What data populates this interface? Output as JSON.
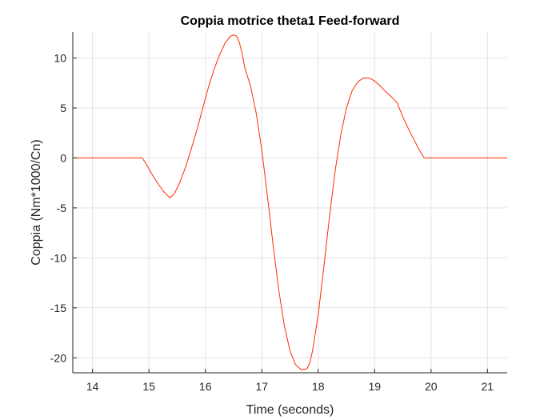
{
  "chart_data": {
    "type": "line",
    "title": "Coppia motrice theta1 Feed-forward",
    "xlabel": "Time (seconds)",
    "ylabel": "Coppia (Nm*1000/Cn)",
    "xlim": [
      13.65,
      21.35
    ],
    "ylim": [
      -21.5,
      12.6
    ],
    "xticks": [
      "14",
      "15",
      "16",
      "17",
      "18",
      "19",
      "20",
      "21"
    ],
    "yticks": [
      "10",
      "5",
      "0",
      "-5",
      "-10",
      "-15",
      "-20"
    ],
    "grid": true,
    "series": [
      {
        "color": "#ff2a00",
        "x": [
          13.65,
          14.88,
          14.95,
          15.05,
          15.15,
          15.25,
          15.37,
          15.45,
          15.55,
          15.65,
          15.75,
          15.85,
          15.95,
          16.05,
          16.15,
          16.25,
          16.35,
          16.45,
          16.5,
          16.55,
          16.6,
          16.65,
          16.7,
          16.8,
          16.9,
          17.0,
          17.1,
          17.2,
          17.3,
          17.4,
          17.5,
          17.6,
          17.7,
          17.8,
          17.85,
          17.9,
          18.0,
          18.1,
          18.2,
          18.3,
          18.4,
          18.5,
          18.6,
          18.7,
          18.8,
          18.9,
          19.0,
          19.1,
          19.2,
          19.3,
          19.4,
          19.5,
          19.6,
          19.7,
          19.8,
          19.88,
          21.35
        ],
        "y": [
          0,
          0,
          -0.6,
          -1.6,
          -2.5,
          -3.3,
          -4.0,
          -3.6,
          -2.4,
          -0.9,
          0.9,
          2.8,
          4.9,
          7.0,
          8.8,
          10.3,
          11.5,
          12.2,
          12.3,
          12.2,
          11.6,
          10.5,
          9.0,
          7.2,
          4.5,
          0.8,
          -3.8,
          -8.7,
          -13.2,
          -16.8,
          -19.3,
          -20.7,
          -21.2,
          -21.1,
          -20.5,
          -19.3,
          -15.7,
          -10.9,
          -5.9,
          -1.3,
          2.3,
          5.0,
          6.7,
          7.6,
          8.0,
          8.0,
          7.7,
          7.2,
          6.6,
          6.1,
          5.5,
          4.1,
          2.9,
          1.8,
          0.7,
          0,
          0
        ]
      }
    ]
  }
}
